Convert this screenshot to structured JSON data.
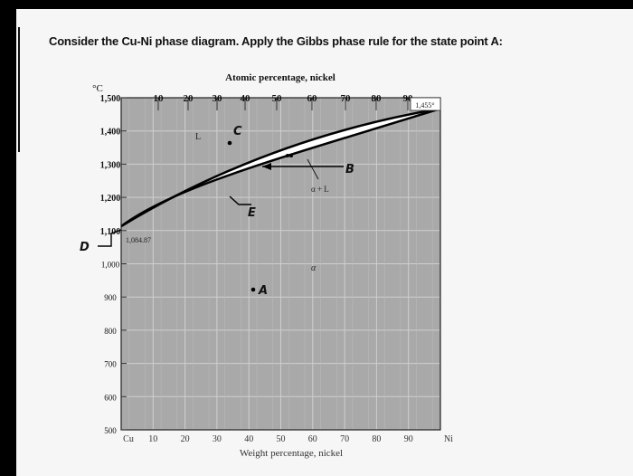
{
  "question": "Consider the Cu-Ni phase diagram. Apply the Gibbs phase rule for the state point A:",
  "diagram": {
    "top_axis_title": "Atomic percentage, nickel",
    "top_ticks": [
      "10",
      "20",
      "30",
      "40",
      "50",
      "60",
      "70",
      "80",
      "90"
    ],
    "y_unit": "°C",
    "y_ticks": [
      "1,500",
      "1,400",
      "1,300",
      "1,200",
      "1,100",
      "1,000",
      "900",
      "800",
      "700",
      "600",
      "500"
    ],
    "x_ticks": [
      "Cu",
      "10",
      "20",
      "30",
      "40",
      "50",
      "60",
      "70",
      "80",
      "90",
      "Ni"
    ],
    "bottom_axis_title": "Weight percentage, nickel",
    "cu_melting_label": "1,084.87",
    "ni_melting_label": "1,455°",
    "region_labels": {
      "liquid": "L",
      "two_phase": "α + L",
      "solid": "α"
    },
    "points": {
      "A": "A",
      "B": "B",
      "C": "C",
      "D": "D",
      "E": "E"
    },
    "colors": {
      "plot_bg": "#a9a9a9",
      "two_phase_bg": "#ffffff",
      "curve": "#000000"
    }
  }
}
